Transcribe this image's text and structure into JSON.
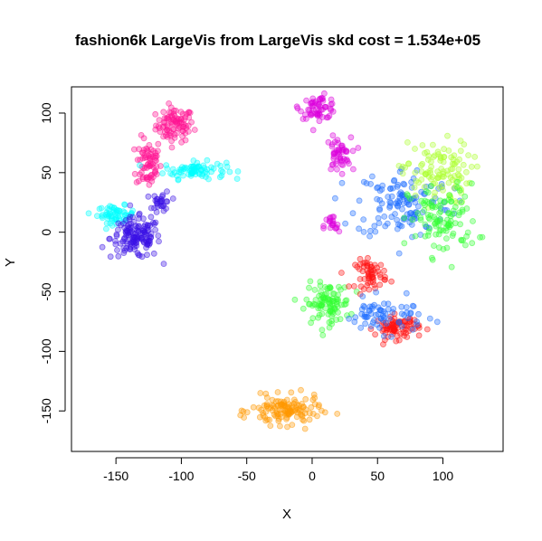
{
  "chart_data": {
    "type": "scatter",
    "title": "fashion6k LargeVis from LargeVis skd cost = 1.534e+05",
    "xlabel": "X",
    "ylabel": "Y",
    "xlim": [
      -184,
      146
    ],
    "ylim": [
      -184,
      122
    ],
    "xticks": [
      -150,
      -100,
      -50,
      0,
      50,
      100
    ],
    "yticks": [
      -150,
      -100,
      -50,
      0,
      50,
      100
    ],
    "x_tick_labels": [
      "-150",
      "-100",
      "-50",
      "0",
      "50",
      "100"
    ],
    "y_tick_labels": [
      "-150",
      "-100",
      "-50",
      "0",
      "50",
      "100"
    ],
    "grid": false,
    "legend": "none",
    "point_style": "semi-transparent circles",
    "clusters": [
      {
        "color": "#ff1493",
        "center": [
          -105,
          90
        ],
        "spread": [
          12,
          12
        ],
        "count": 90
      },
      {
        "color": "#ff1493",
        "center": [
          -125,
          58
        ],
        "spread": [
          8,
          18
        ],
        "count": 70
      },
      {
        "color": "#00ffff",
        "center": [
          -90,
          52
        ],
        "spread": [
          20,
          6
        ],
        "count": 80
      },
      {
        "color": "#00ffff",
        "center": [
          -150,
          15
        ],
        "spread": [
          12,
          6
        ],
        "count": 60
      },
      {
        "color": "#3a10e6",
        "center": [
          -135,
          -5
        ],
        "spread": [
          16,
          14
        ],
        "count": 140
      },
      {
        "color": "#3a10e6",
        "center": [
          -115,
          25
        ],
        "spread": [
          6,
          8
        ],
        "count": 30
      },
      {
        "color": "#dd00dd",
        "center": [
          5,
          105
        ],
        "spread": [
          12,
          8
        ],
        "count": 60
      },
      {
        "color": "#dd00dd",
        "center": [
          20,
          65
        ],
        "spread": [
          8,
          12
        ],
        "count": 50
      },
      {
        "color": "#dd00dd",
        "center": [
          15,
          5
        ],
        "spread": [
          5,
          8
        ],
        "count": 20
      },
      {
        "color": "#1e6cff",
        "center": [
          70,
          25
        ],
        "spread": [
          30,
          25
        ],
        "count": 130
      },
      {
        "color": "#adff2f",
        "center": [
          95,
          50
        ],
        "spread": [
          22,
          22
        ],
        "count": 110
      },
      {
        "color": "#33ff33",
        "center": [
          100,
          10
        ],
        "spread": [
          22,
          25
        ],
        "count": 110
      },
      {
        "color": "#33ff33",
        "center": [
          12,
          -60
        ],
        "spread": [
          14,
          14
        ],
        "count": 100
      },
      {
        "color": "#ff1010",
        "center": [
          45,
          -35
        ],
        "spread": [
          10,
          10
        ],
        "count": 60
      },
      {
        "color": "#ff1010",
        "center": [
          65,
          -80
        ],
        "spread": [
          14,
          8
        ],
        "count": 80
      },
      {
        "color": "#1e6cff",
        "center": [
          55,
          -70
        ],
        "spread": [
          25,
          12
        ],
        "count": 70
      },
      {
        "color": "#ff9900",
        "center": [
          -20,
          -150
        ],
        "spread": [
          22,
          10
        ],
        "count": 130
      }
    ]
  }
}
